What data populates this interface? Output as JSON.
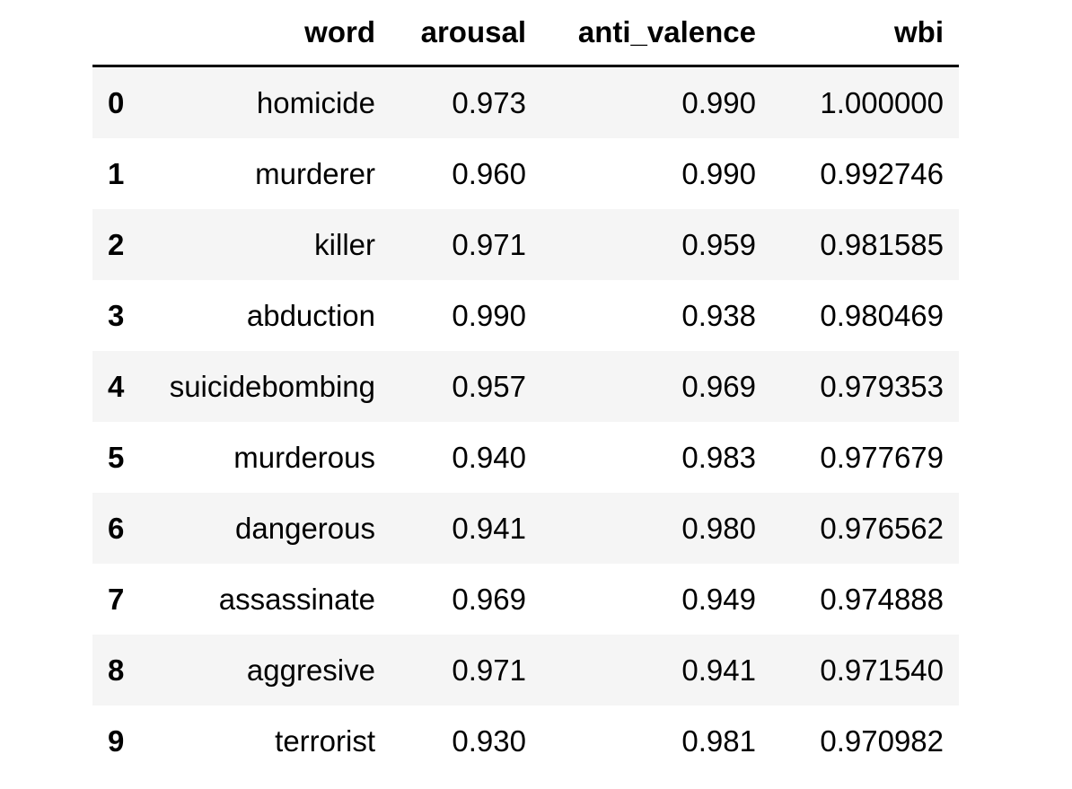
{
  "table": {
    "columns": {
      "index": "",
      "word": "word",
      "arousal": "arousal",
      "anti_valence": "anti_valence",
      "wbi": "wbi"
    },
    "rows": [
      {
        "index": "0",
        "word": "homicide",
        "arousal": "0.973",
        "anti_valence": "0.990",
        "wbi": "1.000000"
      },
      {
        "index": "1",
        "word": "murderer",
        "arousal": "0.960",
        "anti_valence": "0.990",
        "wbi": "0.992746"
      },
      {
        "index": "2",
        "word": "killer",
        "arousal": "0.971",
        "anti_valence": "0.959",
        "wbi": "0.981585"
      },
      {
        "index": "3",
        "word": "abduction",
        "arousal": "0.990",
        "anti_valence": "0.938",
        "wbi": "0.980469"
      },
      {
        "index": "4",
        "word": "suicidebombing",
        "arousal": "0.957",
        "anti_valence": "0.969",
        "wbi": "0.979353"
      },
      {
        "index": "5",
        "word": "murderous",
        "arousal": "0.940",
        "anti_valence": "0.983",
        "wbi": "0.977679"
      },
      {
        "index": "6",
        "word": "dangerous",
        "arousal": "0.941",
        "anti_valence": "0.980",
        "wbi": "0.976562"
      },
      {
        "index": "7",
        "word": "assassinate",
        "arousal": "0.969",
        "anti_valence": "0.949",
        "wbi": "0.974888"
      },
      {
        "index": "8",
        "word": "aggresive",
        "arousal": "0.971",
        "anti_valence": "0.941",
        "wbi": "0.971540"
      },
      {
        "index": "9",
        "word": "terrorist",
        "arousal": "0.930",
        "anti_valence": "0.981",
        "wbi": "0.970982"
      }
    ]
  },
  "colors": {
    "stripe": "#f5f5f5",
    "background": "#ffffff",
    "header_rule": "#000000"
  }
}
